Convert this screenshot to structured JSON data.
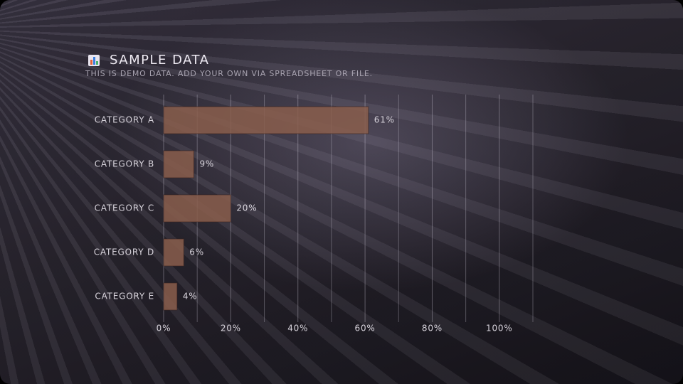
{
  "chart_data": {
    "type": "bar",
    "orientation": "horizontal",
    "title": "SAMPLE DATA",
    "subtitle": "THIS IS DEMO DATA. ADD YOUR OWN VIA SPREADSHEET OR FILE.",
    "categories": [
      "CATEGORY A",
      "CATEGORY B",
      "CATEGORY C",
      "CATEGORY D",
      "CATEGORY E"
    ],
    "values": [
      61,
      9,
      20,
      6,
      4
    ],
    "value_labels": [
      "61%",
      "9%",
      "20%",
      "6%",
      "4%"
    ],
    "color": "#8a5e4c",
    "xlim": [
      0,
      110
    ],
    "xticks": [
      {
        "value": 0,
        "label": "0%"
      },
      {
        "value": 20,
        "label": "20%"
      },
      {
        "value": 40,
        "label": "40%"
      },
      {
        "value": 60,
        "label": "60%"
      },
      {
        "value": 80,
        "label": "80%"
      },
      {
        "value": 100,
        "label": "100%"
      }
    ],
    "minor_xticks": [
      10,
      30,
      50,
      70,
      90,
      110
    ],
    "grid": true
  }
}
